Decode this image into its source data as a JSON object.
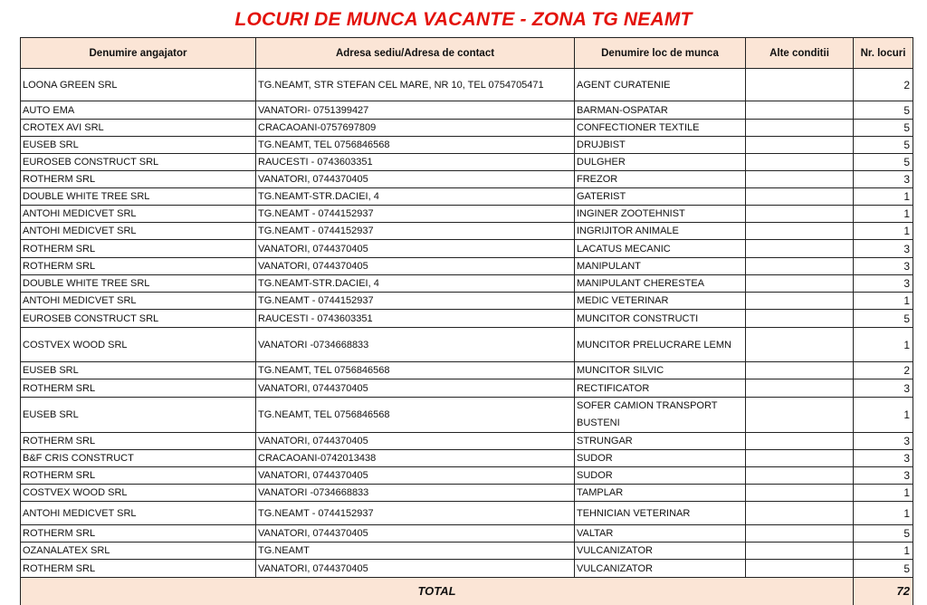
{
  "title": "LOCURI DE MUNCA VACANTE - ZONA TG NEAMT",
  "table": {
    "headers": [
      "Denumire angajator",
      "Adresa sediu/Adresa de contact",
      "Denumire loc de munca",
      "Alte conditii",
      "Nr. locuri"
    ],
    "rows": [
      [
        "LOONA GREEN SRL",
        "TG.NEAMT, STR STEFAN CEL MARE, NR 10, TEL 0754705471",
        "AGENT CURATENIE",
        "",
        "2"
      ],
      [
        "AUTO EMA",
        "VANATORI- 0751399427",
        "BARMAN-OSPATAR",
        "",
        "5"
      ],
      [
        "CROTEX AVI SRL",
        "CRACAOANI-0757697809",
        "CONFECTIONER TEXTILE",
        "",
        "5"
      ],
      [
        "EUSEB SRL",
        "TG.NEAMT, TEL 0756846568",
        "DRUJBIST",
        "",
        "5"
      ],
      [
        "EUROSEB CONSTRUCT SRL",
        "RAUCESTI - 0743603351",
        "DULGHER",
        "",
        "5"
      ],
      [
        "ROTHERM SRL",
        "VANATORI, 0744370405",
        "FREZOR",
        "",
        "3"
      ],
      [
        "DOUBLE WHITE TREE SRL",
        "TG.NEAMT-STR.DACIEI, 4",
        "GATERIST",
        "",
        "1"
      ],
      [
        "ANTOHI MEDICVET SRL",
        "TG.NEAMT - 0744152937",
        "INGINER ZOOTEHNIST",
        "",
        "1"
      ],
      [
        "ANTOHI MEDICVET SRL",
        "TG.NEAMT - 0744152937",
        "INGRIJITOR ANIMALE",
        "",
        "1"
      ],
      [
        "ROTHERM SRL",
        "VANATORI, 0744370405",
        "LACATUS MECANIC",
        "",
        "3"
      ],
      [
        "ROTHERM SRL",
        "VANATORI, 0744370405",
        "MANIPULANT",
        "",
        "3"
      ],
      [
        "DOUBLE WHITE TREE SRL",
        "TG.NEAMT-STR.DACIEI, 4",
        "MANIPULANT CHERESTEA",
        "",
        "3"
      ],
      [
        "ANTOHI MEDICVET SRL",
        "TG.NEAMT - 0744152937",
        "MEDIC VETERINAR",
        "",
        "1"
      ],
      [
        "EUROSEB CONSTRUCT SRL",
        "RAUCESTI - 0743603351",
        "MUNCITOR CONSTRUCTI",
        "",
        "5"
      ],
      [
        "COSTVEX WOOD SRL",
        "VANATORI -0734668833",
        "MUNCITOR PRELUCRARE LEMN",
        "",
        "1"
      ],
      [
        "EUSEB SRL",
        "TG.NEAMT, TEL 0756846568",
        "MUNCITOR SILVIC",
        "",
        "2"
      ],
      [
        "ROTHERM SRL",
        "VANATORI, 0744370405",
        "RECTIFICATOR",
        "",
        "3"
      ],
      [
        "EUSEB SRL",
        "TG.NEAMT, TEL 0756846568",
        "SOFER CAMION TRANSPORT BUSTENI",
        "",
        "1"
      ],
      [
        "ROTHERM SRL",
        "VANATORI, 0744370405",
        "STRUNGAR",
        "",
        "3"
      ],
      [
        "B&F CRIS CONSTRUCT",
        "CRACAOANI-0742013438",
        "SUDOR",
        "",
        "3"
      ],
      [
        "ROTHERM SRL",
        "VANATORI, 0744370405",
        "SUDOR",
        "",
        "3"
      ],
      [
        "COSTVEX WOOD SRL",
        "VANATORI -0734668833",
        "TAMPLAR",
        "",
        "1"
      ],
      [
        "ANTOHI MEDICVET SRL",
        "TG.NEAMT - 0744152937",
        "TEHNICIAN VETERINAR",
        "",
        "1"
      ],
      [
        "ROTHERM SRL",
        "VANATORI, 0744370405",
        "VALTAR",
        "",
        "5"
      ],
      [
        "OZANALATEX SRL",
        "TG.NEAMT",
        "VULCANIZATOR",
        "",
        "1"
      ],
      [
        "ROTHERM SRL",
        "VANATORI, 0744370405",
        "VULCANIZATOR",
        "",
        "5"
      ]
    ],
    "total_label": "TOTAL",
    "total_value": "72"
  }
}
